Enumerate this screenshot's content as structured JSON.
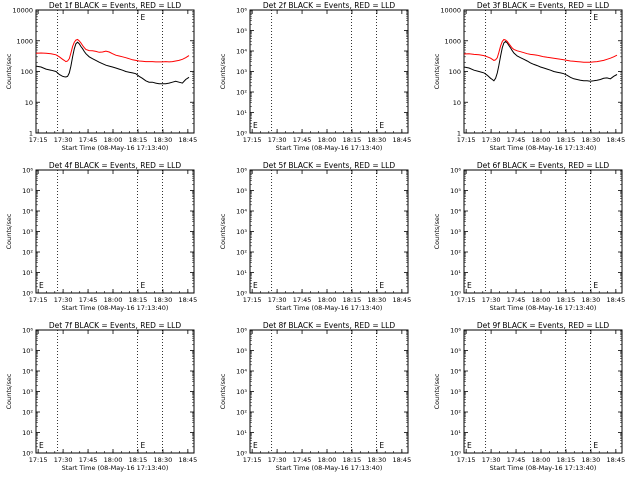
{
  "chart_data": [
    {
      "type": "line",
      "title": "Det 1f BLACK = Events, RED = LLD",
      "xlabel": "Start Time (08-May-16 17:13:40)",
      "ylabel": "Counts/sec",
      "xlim": [
        0,
        95
      ],
      "x_tick_labels": [
        "17:15",
        "17:30",
        "17:45",
        "18:00",
        "18:15",
        "18:30",
        "18:45"
      ],
      "x_tick_values": [
        1.3,
        16.3,
        31.3,
        46.3,
        61.3,
        76.3,
        91.3
      ],
      "y_scale": "log",
      "ylim": [
        1,
        10000
      ],
      "y_tick_labels": [
        "1",
        "10",
        "100",
        "1000",
        "10000"
      ],
      "y_tick_values": [
        1,
        10,
        100,
        1000,
        10000
      ],
      "vlines": [
        13,
        61,
        76
      ],
      "markers": [
        {
          "label": "E",
          "x": 61,
          "y": 10000
        }
      ],
      "series": [
        {
          "name": "Events",
          "color": "#000000",
          "x": [
            0,
            3,
            6,
            9,
            12,
            14,
            16,
            17,
            18,
            19,
            20,
            21,
            22,
            23,
            24,
            25,
            26,
            27,
            28,
            29,
            30,
            32,
            34,
            36,
            38,
            40,
            42,
            44,
            46,
            48,
            50,
            52,
            54,
            56,
            58,
            60,
            62,
            64,
            66,
            68,
            70,
            72,
            74,
            76,
            78,
            80,
            82,
            84,
            86,
            88,
            90,
            92
          ],
          "values": [
            150,
            140,
            120,
            110,
            100,
            80,
            70,
            68,
            66,
            70,
            90,
            150,
            300,
            550,
            800,
            900,
            800,
            650,
            550,
            450,
            380,
            300,
            260,
            230,
            200,
            180,
            160,
            150,
            140,
            130,
            120,
            110,
            100,
            95,
            90,
            85,
            70,
            60,
            50,
            45,
            45,
            42,
            40,
            40,
            40,
            42,
            45,
            48,
            45,
            42,
            55,
            65
          ]
        },
        {
          "name": "LLD",
          "color": "#ff0000",
          "x": [
            0,
            3,
            6,
            9,
            12,
            14,
            16,
            17,
            18,
            19,
            20,
            21,
            22,
            23,
            24,
            25,
            26,
            27,
            28,
            29,
            30,
            32,
            34,
            36,
            38,
            40,
            42,
            44,
            46,
            48,
            50,
            52,
            54,
            56,
            58,
            60,
            62,
            64,
            66,
            68,
            70,
            72,
            74,
            76,
            78,
            80,
            82,
            84,
            86,
            88,
            90,
            92
          ],
          "values": [
            390,
            400,
            395,
            380,
            350,
            300,
            250,
            230,
            210,
            220,
            260,
            400,
            650,
            900,
            1050,
            1100,
            1000,
            850,
            700,
            600,
            520,
            480,
            470,
            450,
            420,
            430,
            460,
            430,
            380,
            340,
            320,
            300,
            280,
            260,
            240,
            230,
            220,
            215,
            210,
            210,
            210,
            205,
            205,
            205,
            210,
            205,
            210,
            220,
            230,
            250,
            280,
            330
          ]
        }
      ]
    },
    {
      "type": "line",
      "title": "Det 2f BLACK = Events, RED = LLD",
      "xlabel": "Start Time (08-May-16 17:13:40)",
      "ylabel": "Counts/sec",
      "xlim": [
        0,
        95
      ],
      "x_tick_labels": [
        "17:15",
        "17:30",
        "17:45",
        "18:00",
        "18:15",
        "18:30",
        "18:45"
      ],
      "x_tick_values": [
        1.3,
        16.3,
        31.3,
        46.3,
        61.3,
        76.3,
        91.3
      ],
      "y_scale": "log",
      "ylim": [
        1,
        1000000
      ],
      "y_tick_labels": [
        "10⁰",
        "10¹",
        "10²",
        "10³",
        "10⁴",
        "10⁵",
        "10⁶"
      ],
      "y_tick_values": [
        1,
        10,
        100,
        1000,
        10000,
        100000,
        1000000
      ],
      "vlines": [
        13,
        61,
        76
      ],
      "markers": [
        {
          "label": "E",
          "x": 76,
          "y": 1
        },
        {
          "label": "E",
          "x": 0,
          "y": 1
        }
      ],
      "series": []
    },
    {
      "type": "line",
      "title": "Det 3f BLACK = Events, RED = LLD",
      "xlabel": "Start Time (08-May-16 17:13:40)",
      "ylabel": "Counts/sec",
      "xlim": [
        0,
        95
      ],
      "x_tick_labels": [
        "17:15",
        "17:30",
        "17:45",
        "18:00",
        "18:15",
        "18:30",
        "18:45"
      ],
      "x_tick_values": [
        1.3,
        16.3,
        31.3,
        46.3,
        61.3,
        76.3,
        91.3
      ],
      "y_scale": "log",
      "ylim": [
        1,
        10000
      ],
      "y_tick_labels": [
        "1",
        "10",
        "100",
        "1000",
        "10000"
      ],
      "y_tick_values": [
        1,
        10,
        100,
        1000,
        10000
      ],
      "vlines": [
        13,
        61,
        76
      ],
      "markers": [
        {
          "label": "E",
          "x": 76,
          "y": 10000
        }
      ],
      "series": [
        {
          "name": "Events",
          "color": "#000000",
          "x": [
            0,
            3,
            6,
            9,
            12,
            14,
            16,
            17,
            18,
            19,
            20,
            21,
            22,
            23,
            24,
            25,
            26,
            27,
            28,
            29,
            30,
            32,
            34,
            36,
            38,
            40,
            42,
            44,
            46,
            48,
            50,
            52,
            54,
            56,
            58,
            60,
            62,
            64,
            66,
            68,
            70,
            72,
            74,
            76,
            78,
            80,
            82,
            84,
            86,
            88,
            90,
            92
          ],
          "values": [
            140,
            130,
            110,
            100,
            90,
            75,
            60,
            55,
            50,
            60,
            90,
            160,
            320,
            600,
            850,
            950,
            850,
            700,
            580,
            480,
            400,
            320,
            280,
            250,
            220,
            190,
            170,
            155,
            140,
            130,
            120,
            110,
            100,
            95,
            90,
            85,
            75,
            65,
            58,
            55,
            52,
            50,
            50,
            48,
            50,
            52,
            55,
            60,
            62,
            58,
            70,
            80
          ]
        },
        {
          "name": "LLD",
          "color": "#ff0000",
          "x": [
            0,
            3,
            6,
            9,
            12,
            14,
            16,
            17,
            18,
            19,
            20,
            21,
            22,
            23,
            24,
            25,
            26,
            27,
            28,
            29,
            30,
            32,
            34,
            36,
            38,
            40,
            42,
            44,
            46,
            48,
            50,
            52,
            54,
            56,
            58,
            60,
            62,
            64,
            66,
            68,
            70,
            72,
            74,
            76,
            78,
            80,
            82,
            84,
            86,
            88,
            90,
            92
          ],
          "values": [
            370,
            380,
            360,
            350,
            330,
            300,
            270,
            250,
            230,
            240,
            280,
            420,
            680,
            950,
            1100,
            1050,
            950,
            800,
            680,
            580,
            520,
            470,
            440,
            410,
            380,
            360,
            350,
            340,
            320,
            300,
            290,
            280,
            270,
            260,
            250,
            240,
            230,
            220,
            215,
            210,
            205,
            200,
            200,
            200,
            205,
            210,
            220,
            230,
            250,
            270,
            300,
            340
          ]
        }
      ]
    },
    {
      "type": "line",
      "title": "Det 4f BLACK = Events, RED = LLD",
      "xlabel": "Start Time (08-May-16 17:13:40)",
      "ylabel": "Counts/sec",
      "xlim": [
        0,
        95
      ],
      "x_tick_labels": [
        "17:15",
        "17:30",
        "17:45",
        "18:00",
        "18:15",
        "18:30",
        "18:45"
      ],
      "x_tick_values": [
        1.3,
        16.3,
        31.3,
        46.3,
        61.3,
        76.3,
        91.3
      ],
      "y_scale": "log",
      "ylim": [
        1,
        1000000
      ],
      "y_tick_labels": [
        "10⁰",
        "10¹",
        "10²",
        "10³",
        "10⁴",
        "10⁵",
        "10⁶"
      ],
      "y_tick_values": [
        1,
        10,
        100,
        1000,
        10000,
        100000,
        1000000
      ],
      "vlines": [
        13,
        61,
        76
      ],
      "markers": [
        {
          "label": "E",
          "x": 61,
          "y": 1
        },
        {
          "label": "E",
          "x": 0,
          "y": 1
        }
      ],
      "series": []
    },
    {
      "type": "line",
      "title": "Det 5f BLACK = Events, RED = LLD",
      "xlabel": "Start Time (08-May-16 17:13:40)",
      "ylabel": "Counts/sec",
      "xlim": [
        0,
        95
      ],
      "x_tick_labels": [
        "17:15",
        "17:30",
        "17:45",
        "18:00",
        "18:15",
        "18:30",
        "18:45"
      ],
      "x_tick_values": [
        1.3,
        16.3,
        31.3,
        46.3,
        61.3,
        76.3,
        91.3
      ],
      "y_scale": "log",
      "ylim": [
        1,
        1000000
      ],
      "y_tick_labels": [
        "10⁰",
        "10¹",
        "10²",
        "10³",
        "10⁴",
        "10⁵",
        "10⁶"
      ],
      "y_tick_values": [
        1,
        10,
        100,
        1000,
        10000,
        100000,
        1000000
      ],
      "vlines": [
        13,
        61,
        76
      ],
      "markers": [
        {
          "label": "E",
          "x": 76,
          "y": 1
        },
        {
          "label": "E",
          "x": 0,
          "y": 1
        }
      ],
      "series": []
    },
    {
      "type": "line",
      "title": "Det 6f BLACK = Events, RED = LLD",
      "xlabel": "Start Time (08-May-16 17:13:40)",
      "ylabel": "Counts/sec",
      "xlim": [
        0,
        95
      ],
      "x_tick_labels": [
        "17:15",
        "17:30",
        "17:45",
        "18:00",
        "18:15",
        "18:30",
        "18:45"
      ],
      "x_tick_values": [
        1.3,
        16.3,
        31.3,
        46.3,
        61.3,
        76.3,
        91.3
      ],
      "y_scale": "log",
      "ylim": [
        1,
        1000000
      ],
      "y_tick_labels": [
        "10⁰",
        "10¹",
        "10²",
        "10³",
        "10⁴",
        "10⁵",
        "10⁶"
      ],
      "y_tick_values": [
        1,
        10,
        100,
        1000,
        10000,
        100000,
        1000000
      ],
      "vlines": [
        13,
        61,
        76
      ],
      "markers": [
        {
          "label": "E",
          "x": 76,
          "y": 1
        },
        {
          "label": "E",
          "x": 0,
          "y": 1
        }
      ],
      "series": []
    },
    {
      "type": "line",
      "title": "Det 7f BLACK = Events, RED = LLD",
      "xlabel": "Start Time (08-May-16 17:13:40)",
      "ylabel": "Counts/sec",
      "xlim": [
        0,
        95
      ],
      "x_tick_labels": [
        "17:15",
        "17:30",
        "17:45",
        "18:00",
        "18:15",
        "18:30",
        "18:45"
      ],
      "x_tick_values": [
        1.3,
        16.3,
        31.3,
        46.3,
        61.3,
        76.3,
        91.3
      ],
      "y_scale": "log",
      "ylim": [
        1,
        1000000
      ],
      "y_tick_labels": [
        "10⁰",
        "10¹",
        "10²",
        "10³",
        "10⁴",
        "10⁵",
        "10⁶"
      ],
      "y_tick_values": [
        1,
        10,
        100,
        1000,
        10000,
        100000,
        1000000
      ],
      "vlines": [
        13,
        61,
        76
      ],
      "markers": [
        {
          "label": "E",
          "x": 61,
          "y": 1
        },
        {
          "label": "E",
          "x": 0,
          "y": 1
        }
      ],
      "series": []
    },
    {
      "type": "line",
      "title": "Det 8f BLACK = Events, RED = LLD",
      "xlabel": "Start Time (08-May-16 17:13:40)",
      "ylabel": "Counts/sec",
      "xlim": [
        0,
        95
      ],
      "x_tick_labels": [
        "17:15",
        "17:30",
        "17:45",
        "18:00",
        "18:15",
        "18:30",
        "18:45"
      ],
      "x_tick_values": [
        1.3,
        16.3,
        31.3,
        46.3,
        61.3,
        76.3,
        91.3
      ],
      "y_scale": "log",
      "ylim": [
        1,
        1000000
      ],
      "y_tick_labels": [
        "10⁰",
        "10¹",
        "10²",
        "10³",
        "10⁴",
        "10⁵",
        "10⁶"
      ],
      "y_tick_values": [
        1,
        10,
        100,
        1000,
        10000,
        100000,
        1000000
      ],
      "vlines": [
        13,
        61,
        76
      ],
      "markers": [
        {
          "label": "E",
          "x": 76,
          "y": 1
        },
        {
          "label": "E",
          "x": 0,
          "y": 1
        }
      ],
      "series": []
    },
    {
      "type": "line",
      "title": "Det 9f BLACK = Events, RED = LLD",
      "xlabel": "Start Time (08-May-16 17:13:40)",
      "ylabel": "Counts/sec",
      "xlim": [
        0,
        95
      ],
      "x_tick_labels": [
        "17:15",
        "17:30",
        "17:45",
        "18:00",
        "18:15",
        "18:30",
        "18:45"
      ],
      "x_tick_values": [
        1.3,
        16.3,
        31.3,
        46.3,
        61.3,
        76.3,
        91.3
      ],
      "y_scale": "log",
      "ylim": [
        1,
        1000000
      ],
      "y_tick_labels": [
        "10⁰",
        "10¹",
        "10²",
        "10³",
        "10⁴",
        "10⁵",
        "10⁶"
      ],
      "y_tick_values": [
        1,
        10,
        100,
        1000,
        10000,
        100000,
        1000000
      ],
      "vlines": [
        13,
        61,
        76
      ],
      "markers": [
        {
          "label": "E",
          "x": 76,
          "y": 1
        },
        {
          "label": "E",
          "x": 0,
          "y": 1
        }
      ],
      "series": []
    }
  ]
}
